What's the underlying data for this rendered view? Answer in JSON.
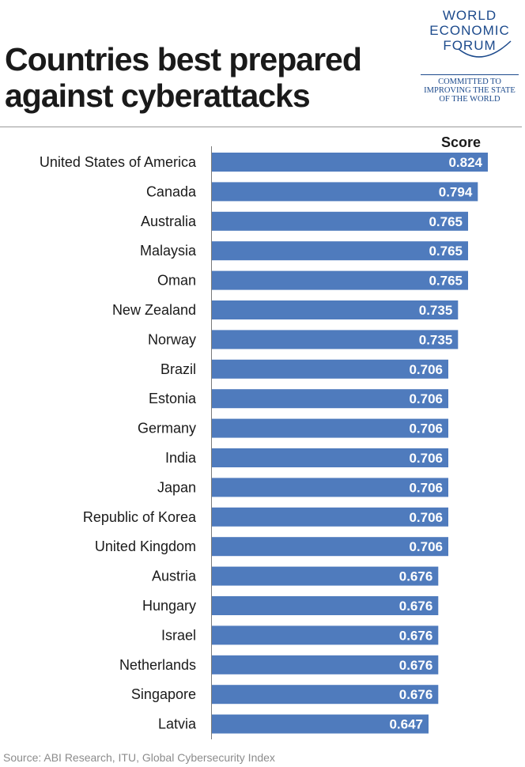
{
  "title_line1": "Countries best prepared",
  "title_line2": "against cyberattacks",
  "logo": {
    "lines": [
      "WORLD",
      "ECONOMIC",
      "FORUM"
    ],
    "tagline": [
      "COMMITTED TO",
      "IMPROVING THE STATE",
      "OF THE WORLD"
    ]
  },
  "source": "Source: ABI Research, ITU, Global Cybersecurity Index",
  "colors": {
    "bar": "#4f7bbd",
    "label": "#1a1a1a",
    "value_label": "#ffffff",
    "logo": "#1c4a8c"
  },
  "chart_data": {
    "type": "bar",
    "orientation": "horizontal",
    "value_header": "Score",
    "categories": [
      "United States of America",
      "Canada",
      "Australia",
      "Malaysia",
      "Oman",
      "New Zealand",
      "Norway",
      "Brazil",
      "Estonia",
      "Germany",
      "India",
      "Japan",
      "Republic of Korea",
      "United Kingdom",
      "Austria",
      "Hungary",
      "Israel",
      "Netherlands",
      "Singapore",
      "Latvia"
    ],
    "value_labels": [
      "0.824",
      "0.794",
      "0.765",
      "0.765",
      "0.765",
      "0.735",
      "0.735",
      "0.706",
      "0.706",
      "0.706",
      "0.706",
      "0.706",
      "0.706",
      "0.706",
      "0.676",
      "0.676",
      "0.676",
      "0.676",
      "0.676",
      "0.647"
    ],
    "values": [
      0.824,
      0.794,
      0.765,
      0.765,
      0.765,
      0.735,
      0.735,
      0.706,
      0.706,
      0.706,
      0.706,
      0.706,
      0.706,
      0.706,
      0.676,
      0.676,
      0.676,
      0.676,
      0.676,
      0.647
    ],
    "xlim": [
      0,
      0.824
    ],
    "grid": false,
    "legend": "none"
  }
}
